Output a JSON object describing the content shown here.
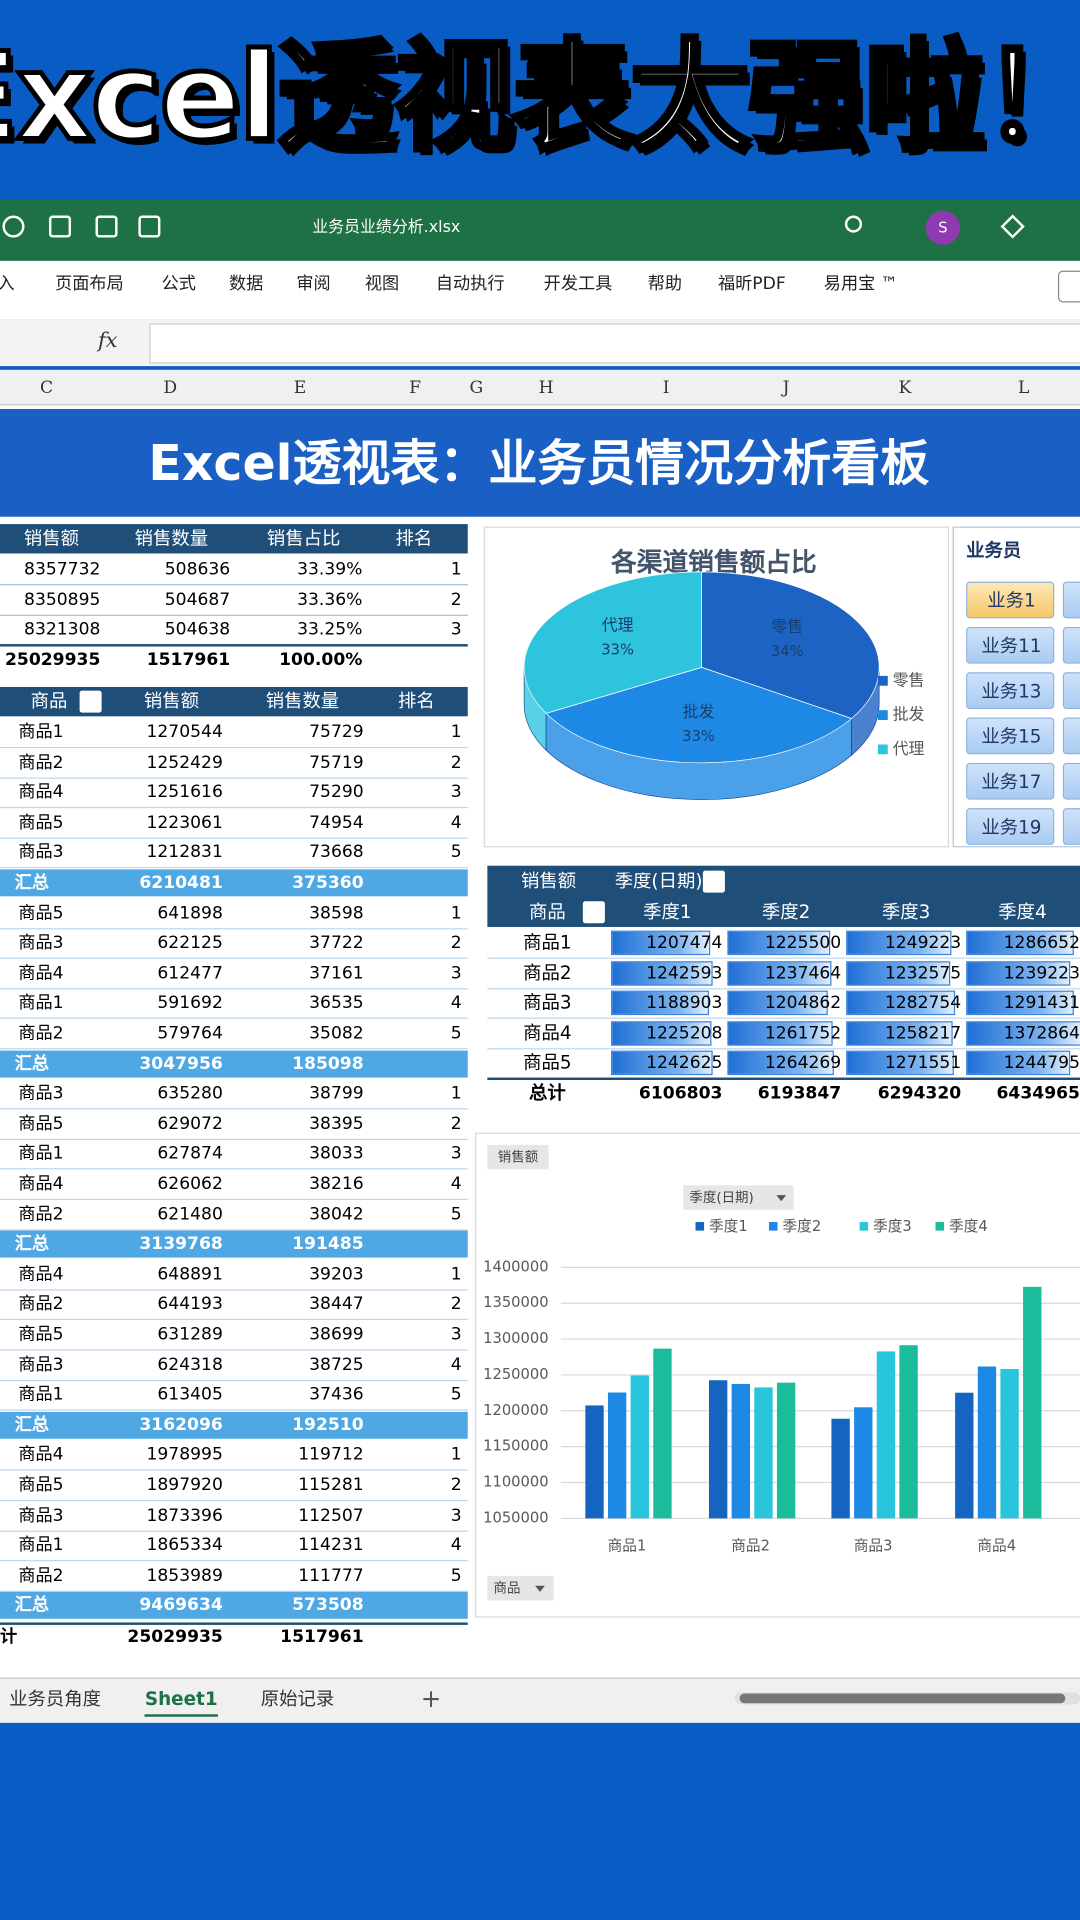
{
  "header": {
    "title": "Excel透视表太强啦！"
  },
  "excel": {
    "filename": "业务员业绩分析.xlsx",
    "avatar": "S",
    "menu": [
      "插入",
      "页面布局",
      "公式",
      "数据",
      "审阅",
      "视图",
      "自动执行",
      "开发工具",
      "帮助",
      "福昕PDF",
      "易用宝 ™"
    ],
    "fx": "fx",
    "columns": [
      "C",
      "D",
      "E",
      "F",
      "G",
      "H",
      "I",
      "J",
      "K",
      "L"
    ],
    "sheets": [
      "业务员角度",
      "Sheet1",
      "原始记录"
    ],
    "add_sheet": "+"
  },
  "banner": {
    "title": "Excel透视表：业务员情况分析看板"
  },
  "channel_table": {
    "headers": [
      "销售额",
      "销售数量",
      "销售占比",
      "排名"
    ],
    "rows": [
      [
        8357732,
        508636,
        "33.39%",
        1
      ],
      [
        8350895,
        504687,
        "33.36%",
        2
      ],
      [
        8321308,
        504638,
        "33.25%",
        3
      ]
    ],
    "total": [
      25029935,
      1517961,
      "100.00%"
    ]
  },
  "product_table": {
    "headers": [
      "商品",
      "销售额",
      "销售数量",
      "排名"
    ],
    "groups": [
      {
        "rows": [
          [
            "商品1",
            1270544,
            75729,
            1
          ],
          [
            "商品2",
            1252429,
            75719,
            2
          ],
          [
            "商品4",
            1251616,
            75290,
            3
          ],
          [
            "商品5",
            1223061,
            74954,
            4
          ],
          [
            "商品3",
            1212831,
            73668,
            5
          ]
        ],
        "subtotal": {
          "label": "汇总",
          "values": [
            6210481,
            375360
          ]
        }
      },
      {
        "rows": [
          [
            "商品5",
            641898,
            38598,
            1
          ],
          [
            "商品3",
            622125,
            37722,
            2
          ],
          [
            "商品4",
            612477,
            37161,
            3
          ],
          [
            "商品1",
            591692,
            36535,
            4
          ],
          [
            "商品2",
            579764,
            35082,
            5
          ]
        ],
        "subtotal": {
          "label": "汇总",
          "values": [
            3047956,
            185098
          ]
        }
      },
      {
        "rows": [
          [
            "商品3",
            635280,
            38799,
            1
          ],
          [
            "商品5",
            629072,
            38395,
            2
          ],
          [
            "商品1",
            627874,
            38033,
            3
          ],
          [
            "商品4",
            626062,
            38216,
            4
          ],
          [
            "商品2",
            621480,
            38042,
            5
          ]
        ],
        "subtotal": {
          "label": "汇总",
          "values": [
            3139768,
            191485
          ]
        }
      },
      {
        "rows": [
          [
            "商品4",
            648891,
            39203,
            1
          ],
          [
            "商品2",
            644193,
            38447,
            2
          ],
          [
            "商品5",
            631289,
            38699,
            3
          ],
          [
            "商品3",
            624318,
            38725,
            4
          ],
          [
            "商品1",
            613405,
            37436,
            5
          ]
        ],
        "subtotal": {
          "label": "汇总",
          "values": [
            3162096,
            192510
          ]
        }
      },
      {
        "rows": [
          [
            "商品4",
            1978995,
            119712,
            1
          ],
          [
            "商品5",
            1897920,
            115281,
            2
          ],
          [
            "商品3",
            1873396,
            112507,
            3
          ],
          [
            "商品1",
            1865334,
            114231,
            4
          ],
          [
            "商品2",
            1853989,
            111777,
            5
          ]
        ],
        "subtotal": {
          "label": "汇总",
          "values": [
            9469634,
            573508
          ]
        }
      }
    ],
    "total": {
      "label": "计",
      "values": [
        25029935,
        1517961
      ]
    }
  },
  "slicer": {
    "title": "业务员",
    "items": [
      "业务1",
      "业务11",
      "业务13",
      "业务15",
      "业务17",
      "业务19"
    ]
  },
  "quarter_table": {
    "value_field": "销售额",
    "column_field": "季度(日期)",
    "row_field": "商品",
    "columns": [
      "季度1",
      "季度2",
      "季度3",
      "季度4"
    ],
    "rows": [
      {
        "label": "商品1",
        "values": [
          1207474,
          1225500,
          1249223,
          1286652
        ]
      },
      {
        "label": "商品2",
        "values": [
          1242593,
          1237464,
          1232575,
          1239223
        ]
      },
      {
        "label": "商品3",
        "values": [
          1188903,
          1204862,
          1282754,
          1291431
        ]
      },
      {
        "label": "商品4",
        "values": [
          1225208,
          1261752,
          1258217,
          1372864
        ]
      },
      {
        "label": "商品5",
        "values": [
          1242625,
          1264269,
          1271551,
          1244795
        ]
      }
    ],
    "total": {
      "label": "总计",
      "values": [
        6106803,
        6193847,
        6294320,
        6434965
      ]
    }
  },
  "chart_data": [
    {
      "type": "pie",
      "title": "各渠道销售额占比",
      "categories": [
        "零售",
        "批发",
        "代理"
      ],
      "values": [
        34,
        33,
        33
      ],
      "value_labels": [
        "34%",
        "33%",
        "33%"
      ],
      "colors": [
        "#1d63c4",
        "#1e88e5",
        "#2ec4de"
      ]
    },
    {
      "type": "bar",
      "value_field": "销售额",
      "legend_field": "季度(日期)",
      "axis_field": "商品",
      "categories": [
        "商品1",
        "商品2",
        "商品3",
        "商品4"
      ],
      "series": [
        {
          "name": "季度1",
          "color": "#1565c0",
          "values": [
            1207474,
            1242593,
            1188903,
            1225208
          ]
        },
        {
          "name": "季度2",
          "color": "#1e88e5",
          "values": [
            1225500,
            1237464,
            1204862,
            1261752
          ]
        },
        {
          "name": "季度3",
          "color": "#29c5dc",
          "values": [
            1249223,
            1232575,
            1282754,
            1258217
          ]
        },
        {
          "name": "季度4",
          "color": "#1abc9c",
          "values": [
            1286652,
            1239223,
            1291431,
            1372864
          ]
        }
      ],
      "ylim": [
        1050000,
        1400000
      ],
      "yticks": [
        1050000,
        1100000,
        1150000,
        1200000,
        1250000,
        1300000,
        1350000,
        1400000
      ],
      "grid": true
    }
  ]
}
